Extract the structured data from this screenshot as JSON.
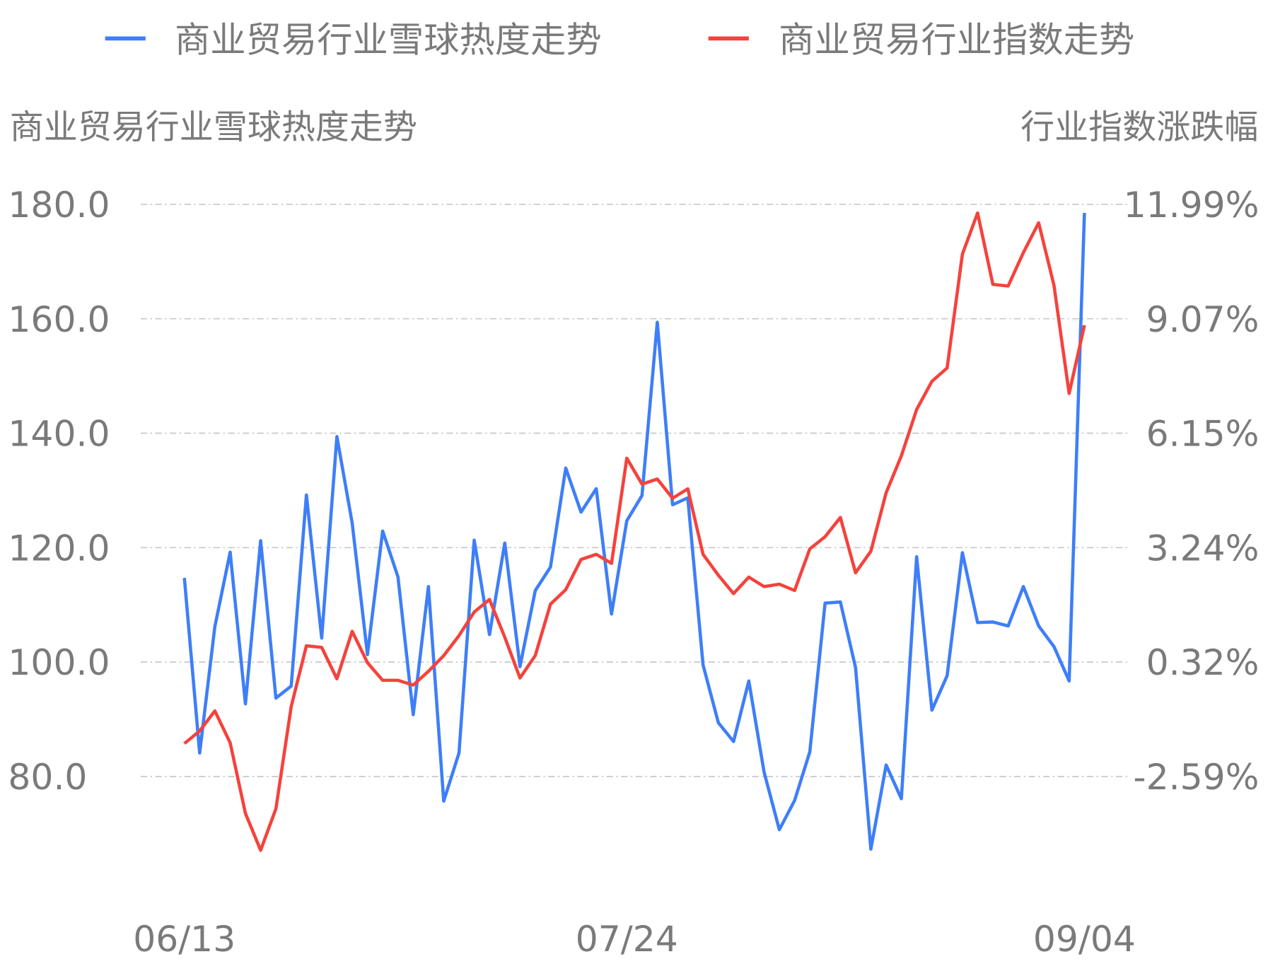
{
  "chart_data": {
    "type": "line",
    "legend": {
      "placement": "top",
      "items": [
        {
          "label": "商业贸易行业雪球热度走势",
          "color": "#3e7ef8"
        },
        {
          "label": "商业贸易行业指数走势",
          "color": "#f5423c"
        }
      ]
    },
    "ylabel_left": "商业贸易行业雪球热度走势",
    "ylabel_right": "行业指数涨跌幅",
    "y_left": {
      "ticks": [
        "180.0",
        "160.0",
        "140.0",
        "120.0",
        "100.0",
        "80.0"
      ],
      "range": [
        80,
        180
      ]
    },
    "y_right": {
      "ticks": [
        "11.99%",
        "9.07%",
        "6.15%",
        "3.24%",
        "0.32%",
        "-2.59%"
      ],
      "range": [
        -2.59,
        11.99
      ]
    },
    "x_ticks": [
      "06/13",
      "07/24",
      "09/04"
    ],
    "grid": true,
    "x": [
      "06/13",
      "06/14",
      "06/17",
      "06/18",
      "06/19",
      "06/20",
      "06/21",
      "06/24",
      "06/25",
      "06/26",
      "06/27",
      "06/28",
      "07/01",
      "07/02",
      "07/03",
      "07/04",
      "07/05",
      "07/08",
      "07/09",
      "07/10",
      "07/11",
      "07/12",
      "07/15",
      "07/16",
      "07/17",
      "07/18",
      "07/19",
      "07/22",
      "07/23",
      "07/24",
      "07/25",
      "07/26",
      "07/29",
      "07/30",
      "07/31",
      "08/01",
      "08/02",
      "08/05",
      "08/06",
      "08/07",
      "08/08",
      "08/09",
      "08/12",
      "08/13",
      "08/14",
      "08/15",
      "08/16",
      "08/19",
      "08/20",
      "08/21",
      "08/22",
      "08/23",
      "08/26",
      "08/27",
      "08/28",
      "08/29",
      "08/30",
      "09/02",
      "09/03",
      "09/04"
    ],
    "series": [
      {
        "name": "商业贸易行业雪球热度走势",
        "axis": "left",
        "color": "#3e7ef8",
        "values": [
          114.7,
          84.1,
          106.2,
          119.2,
          92.7,
          121.2,
          93.7,
          95.8,
          129.2,
          104.2,
          139.4,
          124.3,
          101.3,
          122.9,
          114.9,
          90.8,
          113.2,
          75.7,
          84.1,
          121.3,
          104.8,
          120.8,
          99.2,
          112.5,
          116.6,
          133.9,
          126.2,
          130.3,
          108.4,
          124.7,
          129.1,
          159.4,
          127.5,
          128.7,
          99.5,
          89.4,
          86.1,
          96.7,
          80.8,
          70.7,
          75.8,
          84.3,
          110.3,
          110.5,
          99.0,
          67.3,
          82.0,
          76.1,
          118.4,
          91.6,
          97.6,
          119.1,
          106.9,
          107.0,
          106.3,
          113.2,
          106.3,
          102.7,
          96.7,
          178.5
        ]
      },
      {
        "name": "商业贸易行业指数走势",
        "axis": "right",
        "color": "#f5423c",
        "values": [
          -1.75,
          -1.43,
          -0.92,
          -1.73,
          -3.53,
          -4.47,
          -3.41,
          -0.81,
          0.74,
          0.7,
          -0.1,
          1.11,
          0.31,
          -0.14,
          -0.14,
          -0.26,
          0.09,
          0.49,
          1.0,
          1.6,
          1.92,
          0.96,
          -0.08,
          0.49,
          1.8,
          2.17,
          2.94,
          3.07,
          2.84,
          5.52,
          4.86,
          4.99,
          4.5,
          4.74,
          3.07,
          2.54,
          2.07,
          2.49,
          2.25,
          2.31,
          2.15,
          3.21,
          3.52,
          4.01,
          2.6,
          3.15,
          4.64,
          5.58,
          6.76,
          7.48,
          7.82,
          10.72,
          11.77,
          9.95,
          9.91,
          10.76,
          11.52,
          9.93,
          7.17,
          8.91
        ]
      }
    ]
  }
}
